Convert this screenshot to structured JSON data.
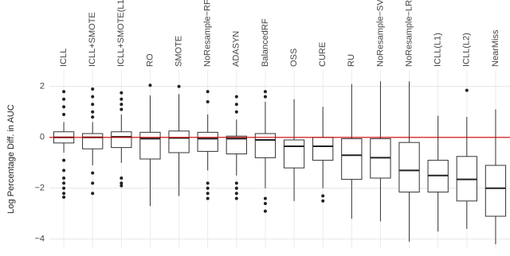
{
  "chart_data": {
    "type": "box",
    "y_label": "Log Percentage Diff. in AUC",
    "categories": [
      "ICLL",
      "ICLL+SMOTE",
      "ICLL+SMOTE(L1)",
      "RO",
      "SMOTE",
      "NoResample−RF",
      "ADASYN",
      "BalancedRF",
      "OSS",
      "CURE",
      "RU",
      "NoResample−SVM",
      "NoResample−LR",
      "ICLL(L1)",
      "ICLL(L2)",
      "NearMiss"
    ],
    "whislo": [
      -0.6,
      -1.1,
      -1.0,
      -2.7,
      -2.3,
      -1.3,
      -1.5,
      -2.0,
      -2.5,
      -2.0,
      -3.2,
      -3.3,
      -4.1,
      -3.7,
      -3.6,
      -4.2
    ],
    "q1": [
      -0.22,
      -0.45,
      -0.4,
      -0.85,
      -0.6,
      -0.55,
      -0.65,
      -0.8,
      -1.2,
      -0.9,
      -1.65,
      -1.6,
      -2.15,
      -2.15,
      -2.5,
      -3.1
    ],
    "median": [
      0,
      0,
      0.02,
      -0.05,
      -0.02,
      -0.05,
      -0.05,
      -0.1,
      -0.35,
      -0.35,
      -0.7,
      -0.8,
      -1.3,
      -1.5,
      -1.65,
      -2.0
    ],
    "q3": [
      0.22,
      0.15,
      0.22,
      0.2,
      0.25,
      0.2,
      0.05,
      0.15,
      -0.1,
      0,
      -0.05,
      -0.05,
      -0.2,
      -0.9,
      -0.75,
      -1.1
    ],
    "whishi": [
      0.6,
      0.6,
      0.9,
      1.65,
      1.7,
      0.9,
      0.7,
      1.4,
      1.5,
      1.2,
      2.1,
      2.2,
      2.2,
      0.85,
      0.8,
      1.1
    ],
    "outliers": [
      [
        1.8,
        1.5,
        1.2,
        0.9,
        -0.9,
        -1.3,
        -1.6,
        -1.8,
        -2.0,
        -2.2,
        -2.35
      ],
      [
        1.9,
        1.6,
        1.3,
        1.0,
        0.8,
        -1.4,
        -1.8,
        -2.2
      ],
      [
        1.75,
        1.5,
        1.3,
        1.1,
        -1.6,
        -1.8,
        -1.9
      ],
      [
        2.05
      ],
      [
        2.0
      ],
      [
        1.8,
        1.4,
        -1.8,
        -2.0,
        -2.2,
        -2.4
      ],
      [
        1.6,
        1.3,
        1.0,
        -1.8,
        -2.0,
        -2.2,
        -2.4
      ],
      [
        1.8,
        1.6,
        -2.4,
        -2.6,
        -2.9
      ],
      [],
      [
        -2.3,
        -2.5
      ],
      [],
      [],
      [],
      [],
      [
        1.85
      ],
      []
    ],
    "reference_line": {
      "value": 0,
      "color": "#cc0000"
    },
    "ylim": [
      -4.35,
      2.65
    ],
    "yticks": [
      {
        "value": -4,
        "label": "−4"
      },
      {
        "value": -2,
        "label": "−2"
      },
      0,
      2
    ],
    "grid": true
  }
}
